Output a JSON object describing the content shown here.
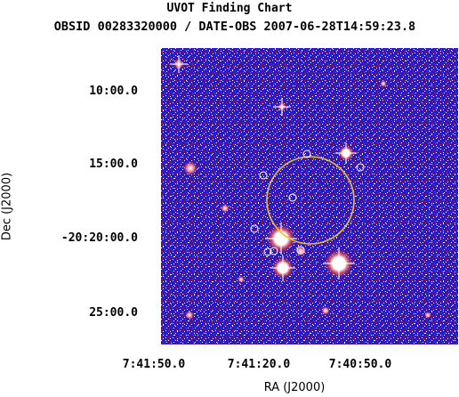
{
  "header": {
    "title": "UVOT Finding Chart",
    "subtitle": "OBSID 00283320000 / DATE-OBS 2007-06-28T14:59:23.8"
  },
  "axes": {
    "xlabel": "RA (J2000)",
    "ylabel": "Dec (J2000)",
    "dec_ticks": [
      "10:00.0",
      "15:00.0",
      "-20:20:00.0",
      "25:00.0"
    ],
    "ra_ticks": [
      "7:41:50.0",
      "7:41:20.0",
      "7:40:50.0"
    ]
  },
  "colors": {
    "background_sky": "#2a1ab8",
    "noise_red": "#c0203a",
    "noise_white": "#ffffff",
    "region_circle": "#f0c020",
    "source_marker": "#ffffff"
  }
}
